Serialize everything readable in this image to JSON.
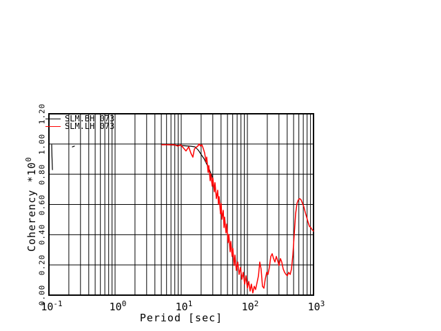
{
  "chart_data": {
    "type": "line",
    "title": "",
    "xlabel": "Period [sec]",
    "ylabel_base": "Coherency *10",
    "ylabel_sup": "0",
    "x_scale": "log",
    "xlim": [
      0.1,
      1000
    ],
    "ylim": [
      0.0,
      1.2
    ],
    "x_tick_base": "10",
    "x_tick_exponents": [
      "-1",
      "0",
      "1",
      "2",
      "3"
    ],
    "y_tick_values": [
      0.0,
      0.2,
      0.4,
      0.6,
      0.8,
      1.0,
      1.2
    ],
    "y_tick_labels": [
      "0.00",
      "0.20",
      "0.40",
      "0.60",
      "0.80",
      "1.00",
      "1.20"
    ],
    "grid": "full log grid, major and minor vertical lines, horizontal lines every 0.20",
    "legend_position": "top-left inside plot",
    "series": [
      {
        "name": "SLM.BH 073",
        "color": "#000000",
        "segments": [
          [
            [
              0.11,
              0.995
            ],
            [
              0.111,
              0.92
            ],
            [
              0.113,
              0.83
            ]
          ],
          [
            [
              0.226,
              0.981
            ],
            [
              0.243,
              0.986
            ]
          ],
          [
            [
              5.1,
              0.997
            ],
            [
              10,
              0.99
            ],
            [
              14,
              0.985
            ],
            [
              16.2,
              0.981
            ],
            [
              18.2,
              0.958
            ],
            [
              20.0,
              0.931
            ],
            [
              22.1,
              0.903
            ],
            [
              24.3,
              0.867
            ],
            [
              26.7,
              0.83
            ],
            [
              29.4,
              0.785
            ],
            [
              31.0,
              0.72
            ]
          ]
        ]
      },
      {
        "name": "SLM.LH 073",
        "color": "#ff0000",
        "segments": [
          [
            [
              5.1,
              0.995
            ],
            [
              7.9,
              0.995
            ],
            [
              8.9,
              0.986
            ],
            [
              9.8,
              0.995
            ],
            [
              10.7,
              0.976
            ],
            [
              11.8,
              0.954
            ],
            [
              13.0,
              0.981
            ],
            [
              14.0,
              0.94
            ],
            [
              15.0,
              0.913
            ],
            [
              15.8,
              0.967
            ],
            [
              16.6,
              0.976
            ],
            [
              17.8,
              0.986
            ],
            [
              18.7,
              1.0
            ],
            [
              19.6,
              0.986
            ],
            [
              20.5,
              0.995
            ],
            [
              21.5,
              0.972
            ],
            [
              22.6,
              0.94
            ],
            [
              23.7,
              0.881
            ],
            [
              24.3,
              0.913
            ],
            [
              25.5,
              0.812
            ],
            [
              26.1,
              0.858
            ],
            [
              27.4,
              0.757
            ],
            [
              28.0,
              0.803
            ],
            [
              29.4,
              0.721
            ],
            [
              30.1,
              0.776
            ],
            [
              31.6,
              0.684
            ],
            [
              32.4,
              0.744
            ],
            [
              34.0,
              0.639
            ],
            [
              35.6,
              0.694
            ],
            [
              36.5,
              0.602
            ],
            [
              37.4,
              0.652
            ],
            [
              39.2,
              0.538
            ],
            [
              40.2,
              0.607
            ],
            [
              41.2,
              0.502
            ],
            [
              43.2,
              0.561
            ],
            [
              44.3,
              0.447
            ],
            [
              45.3,
              0.516
            ],
            [
              47.5,
              0.411
            ],
            [
              48.7,
              0.47
            ],
            [
              51.1,
              0.347
            ],
            [
              52.4,
              0.402
            ],
            [
              54.9,
              0.287
            ],
            [
              56.2,
              0.356
            ],
            [
              58.9,
              0.256
            ],
            [
              60.3,
              0.31
            ],
            [
              63.1,
              0.196
            ],
            [
              64.9,
              0.265
            ],
            [
              68.1,
              0.164
            ],
            [
              71.4,
              0.219
            ],
            [
              74.9,
              0.137
            ],
            [
              78.7,
              0.183
            ],
            [
              82.5,
              0.105
            ],
            [
              86.6,
              0.151
            ],
            [
              90.8,
              0.073
            ],
            [
              95.3,
              0.128
            ],
            [
              100,
              0.046
            ],
            [
              105,
              0.091
            ],
            [
              110,
              0.027
            ],
            [
              115,
              0.073
            ],
            [
              121,
              0.014
            ],
            [
              127,
              0.059
            ],
            [
              133,
              0.037
            ],
            [
              140,
              0.082
            ],
            [
              147,
              0.128
            ],
            [
              154,
              0.219
            ],
            [
              161,
              0.173
            ],
            [
              169,
              0.059
            ],
            [
              178,
              0.046
            ],
            [
              186,
              0.105
            ],
            [
              196,
              0.151
            ],
            [
              205,
              0.137
            ],
            [
              215,
              0.183
            ],
            [
              226,
              0.256
            ],
            [
              237,
              0.274
            ],
            [
              249,
              0.242
            ],
            [
              261,
              0.219
            ],
            [
              274,
              0.256
            ],
            [
              287,
              0.228
            ],
            [
              301,
              0.196
            ],
            [
              316,
              0.242
            ],
            [
              331,
              0.219
            ],
            [
              348,
              0.173
            ],
            [
              365,
              0.151
            ],
            [
              383,
              0.137
            ],
            [
              402,
              0.128
            ],
            [
              422,
              0.151
            ],
            [
              443,
              0.137
            ],
            [
              464,
              0.173
            ],
            [
              487,
              0.265
            ],
            [
              511,
              0.402
            ],
            [
              536,
              0.538
            ],
            [
              562,
              0.607
            ],
            [
              589,
              0.63
            ],
            [
              619,
              0.639
            ],
            [
              650,
              0.63
            ],
            [
              681,
              0.607
            ],
            [
              715,
              0.584
            ],
            [
              750,
              0.548
            ],
            [
              787,
              0.516
            ],
            [
              825,
              0.484
            ],
            [
              866,
              0.456
            ],
            [
              908,
              0.447
            ],
            [
              953,
              0.433
            ],
            [
              1000,
              0.424
            ]
          ]
        ]
      }
    ]
  },
  "legend": {
    "items": [
      {
        "label": "SLM.BH 073",
        "color": "#000000"
      },
      {
        "label": "SLM.LH 073",
        "color": "#ff0000"
      }
    ]
  },
  "colors": {
    "background": "#ffffff",
    "grid": "#000000",
    "frame": "#000000"
  }
}
